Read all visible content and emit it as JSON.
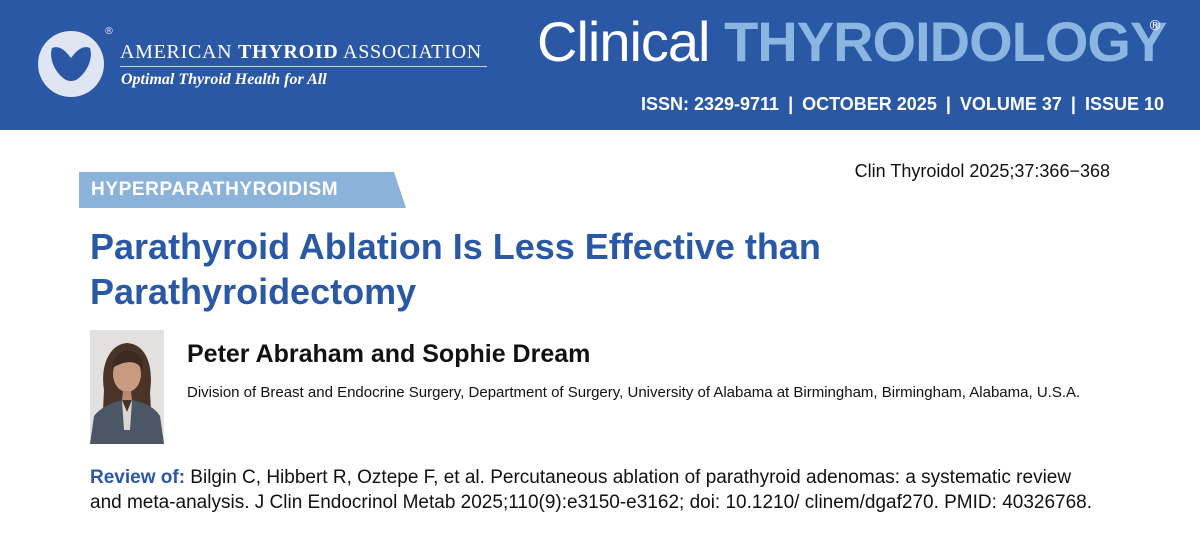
{
  "header": {
    "org_name_prefix": "AMERICAN ",
    "org_name_bold": "THYROID",
    "org_name_suffix": " ASSOCIATION",
    "org_registered": "®",
    "org_tagline": "Optimal Thyroid Health for All",
    "journal_title_part1": "Clinical ",
    "journal_title_part2": "THYROIDOLOGY",
    "journal_registered": "®",
    "issn": "ISSN: 2329-9711",
    "date": "OCTOBER 2025",
    "volume": "VOLUME 37",
    "issue": "ISSUE 10",
    "separator": "|",
    "colors": {
      "banner": "#2a58a5",
      "accent": "#8ab6e1"
    }
  },
  "article": {
    "citation": "Clin Thyroidol 2025;37:366−368",
    "category": "HYPERPARATHYROIDISM",
    "title": "Parathyroid Ablation Is Less Effective than Parathyroidectomy",
    "authors": "Peter Abraham and Sophie Dream",
    "affiliation": "Division of Breast and Endocrine Surgery, Department of Surgery, University of Alabama at Birmingham, Birmingham, Alabama, U.S.A.",
    "review_label": "Review of:",
    "review_text": " Bilgin C, Hibbert R, Oztepe F, et al. Percutaneous ablation of parathyroid adenomas: a systematic review and meta-analysis. J Clin Endocrinol Metab 2025;110(9):e3150-e3162; doi: 10.1210/ clinem/dgaf270. PMID: 40326768.",
    "colors": {
      "title": "#2a58a5",
      "category_tab": "#8bb3da"
    }
  }
}
